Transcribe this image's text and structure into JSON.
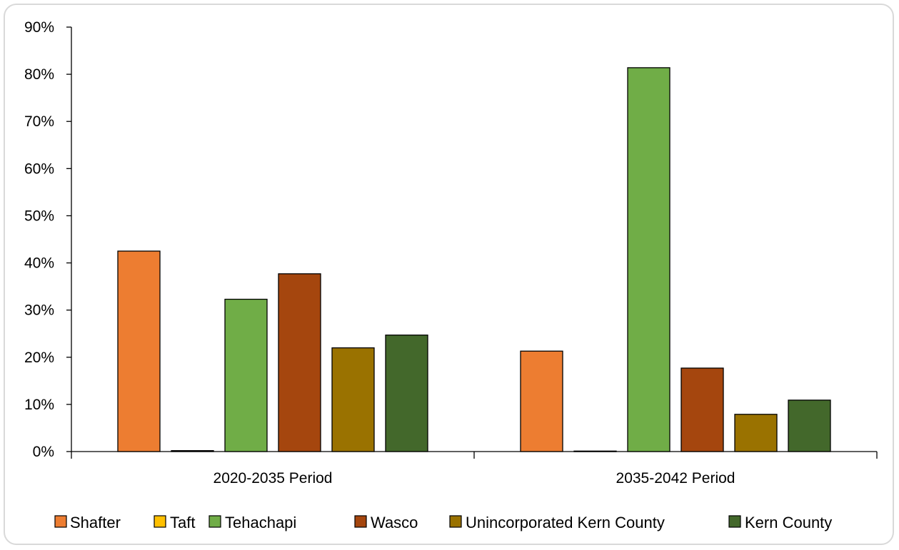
{
  "chart_data": {
    "type": "bar",
    "title": "",
    "xlabel": "",
    "ylabel": "",
    "categories": [
      "2020-2035 Period",
      "2035-2042 Period"
    ],
    "ylim": [
      0,
      90
    ],
    "y_ticks": [
      "0%",
      "10%",
      "20%",
      "30%",
      "40%",
      "50%",
      "60%",
      "70%",
      "80%",
      "90%"
    ],
    "y_tick_values": [
      0,
      10,
      20,
      30,
      40,
      50,
      60,
      70,
      80,
      90
    ],
    "grid": false,
    "legend_position": "bottom",
    "series": [
      {
        "name": "Shafter",
        "color": "#ED7D31",
        "values": [
          42.5,
          21.3
        ]
      },
      {
        "name": "Taft",
        "color": "#FFC000",
        "values": [
          0.2,
          0.1
        ]
      },
      {
        "name": "Tehachapi",
        "color": "#70AD47",
        "values": [
          32.3,
          81.4
        ]
      },
      {
        "name": "Wasco",
        "color": "#A5460E",
        "values": [
          37.7,
          17.7
        ]
      },
      {
        "name": "Unincorporated Kern County",
        "color": "#9A7200",
        "values": [
          22.0,
          7.9
        ]
      },
      {
        "name": "Kern County",
        "color": "#43682B",
        "values": [
          24.7,
          10.9
        ]
      }
    ]
  }
}
